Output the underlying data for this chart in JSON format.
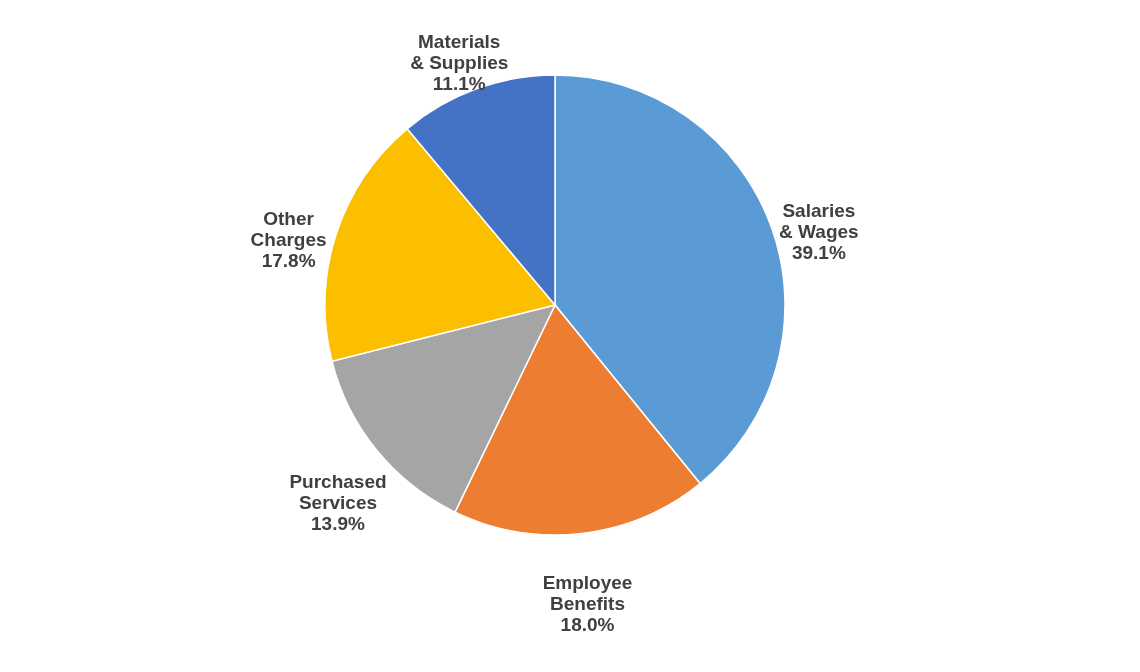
{
  "chart_data": {
    "type": "pie",
    "categories": [
      "Salaries & Wages",
      "Employee Benefits",
      "Purchased Services",
      "Other Charges",
      "Materials & Supplies"
    ],
    "values": [
      39.1,
      18.0,
      13.9,
      17.8,
      11.1
    ],
    "colors": [
      "#5b9bd5",
      "#ed7d31",
      "#a5a5a5",
      "#fbbf00",
      "#4472c4"
    ],
    "value_labels": [
      "39.1%",
      "18.0%",
      "13.9%",
      "17.8%",
      "11.1%"
    ],
    "legend": false
  }
}
